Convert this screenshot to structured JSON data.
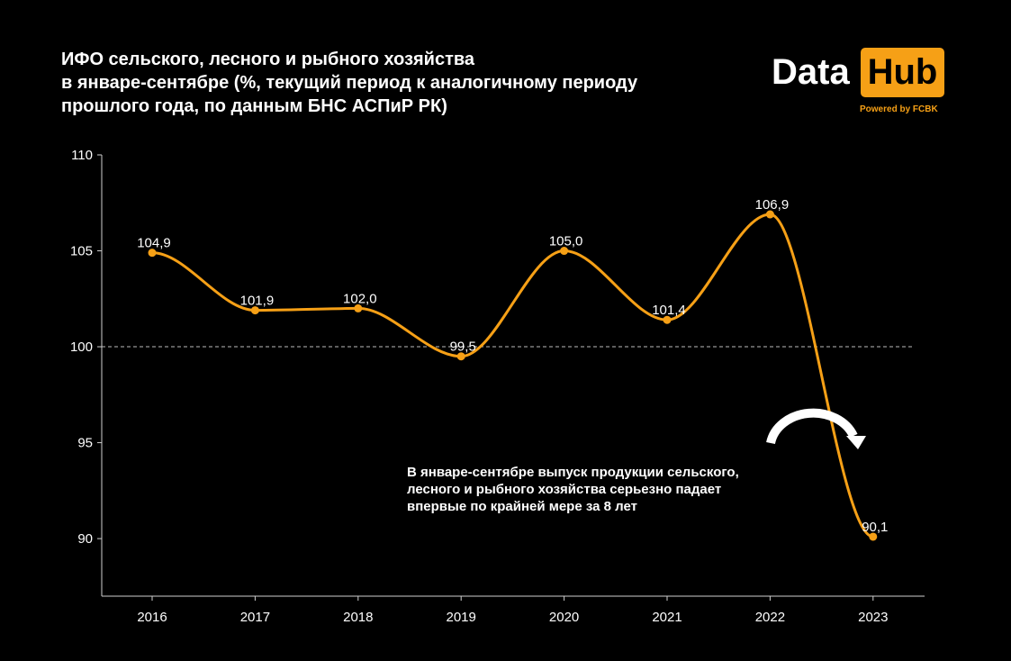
{
  "title_lines": [
    "ИФО сельского, лесного и рыбного хозяйства",
    "в январе-сентябре (%, текущий период к аналогичному периоду",
    "прошлого года, по данным БНС АСПиР РК)"
  ],
  "logo": {
    "data_text": "Data",
    "hub_text": "Hub",
    "powered_text": "Powered by FCBK",
    "accent_color": "#f6a016"
  },
  "annotation": {
    "lines": [
      "В январе-сентябре выпуск продукции сельского,",
      "лесного и рыбного хозяйства  серьезно падает",
      "впервые по  крайней мере за 8 лет"
    ],
    "arrow_icon": "curved-arrow-down-icon"
  },
  "chart_data": {
    "type": "line",
    "categories": [
      "2016",
      "2017",
      "2018",
      "2019",
      "2020",
      "2021",
      "2022",
      "2023"
    ],
    "series": [
      {
        "values": [
          104.9,
          101.9,
          102.0,
          99.5,
          105.0,
          101.4,
          106.9,
          90.1
        ],
        "labels": [
          "104,9",
          "101,9",
          "102,0",
          "99,5",
          "105,0",
          "101,4",
          "106,9",
          "90,1"
        ],
        "color": "#f6a016"
      }
    ],
    "ylim": [
      87,
      110
    ],
    "yticks": [
      90,
      95,
      100,
      105,
      110
    ],
    "reference_line": 100,
    "grid": false,
    "smooth": true
  }
}
